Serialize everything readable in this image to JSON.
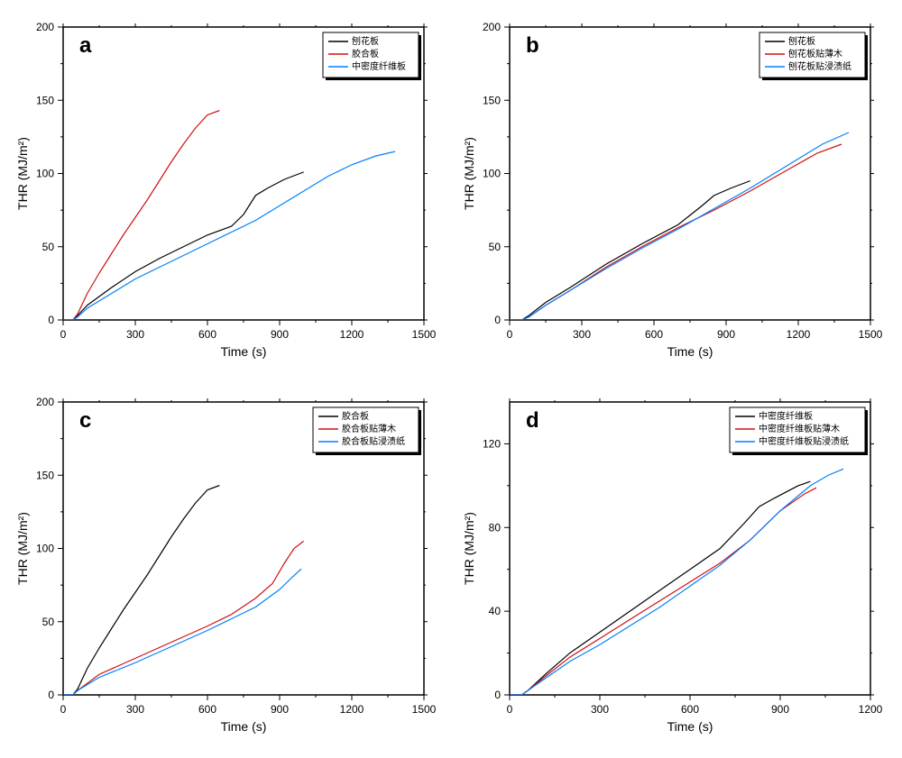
{
  "figure": {
    "background_color": "#ffffff",
    "panels": [
      {
        "id": "a",
        "letter": "a",
        "xlabel": "Time (s)",
        "ylabel": "THR (MJ/m²)",
        "xlim": [
          0,
          1500
        ],
        "ylim": [
          0,
          200
        ],
        "xticks": [
          0,
          300,
          600,
          900,
          1200,
          1500
        ],
        "yticks": [
          0,
          50,
          100,
          150,
          200
        ],
        "legend_items": [
          "刨花板",
          "胶合板",
          "中密度纤维板"
        ],
        "series": [
          {
            "name": "刨花板",
            "color": "#000000",
            "data": [
              [
                0,
                0
              ],
              [
                40,
                0
              ],
              [
                60,
                3
              ],
              [
                100,
                10
              ],
              [
                200,
                22
              ],
              [
                300,
                33
              ],
              [
                400,
                42
              ],
              [
                500,
                50
              ],
              [
                600,
                58
              ],
              [
                700,
                64
              ],
              [
                750,
                72
              ],
              [
                800,
                85
              ],
              [
                850,
                90
              ],
              [
                920,
                96
              ],
              [
                1000,
                101
              ]
            ]
          },
          {
            "name": "胶合板",
            "color": "#d01010",
            "data": [
              [
                0,
                0
              ],
              [
                40,
                0
              ],
              [
                60,
                4
              ],
              [
                100,
                18
              ],
              [
                150,
                32
              ],
              [
                200,
                45
              ],
              [
                250,
                58
              ],
              [
                300,
                70
              ],
              [
                350,
                82
              ],
              [
                400,
                95
              ],
              [
                450,
                108
              ],
              [
                500,
                120
              ],
              [
                550,
                131
              ],
              [
                600,
                140
              ],
              [
                650,
                143
              ]
            ]
          },
          {
            "name": "中密度纤维板",
            "color": "#0080ff",
            "data": [
              [
                0,
                0
              ],
              [
                40,
                0
              ],
              [
                60,
                2
              ],
              [
                100,
                8
              ],
              [
                200,
                18
              ],
              [
                300,
                28
              ],
              [
                400,
                36
              ],
              [
                500,
                44
              ],
              [
                600,
                52
              ],
              [
                700,
                60
              ],
              [
                800,
                68
              ],
              [
                900,
                78
              ],
              [
                1000,
                88
              ],
              [
                1100,
                98
              ],
              [
                1200,
                106
              ],
              [
                1300,
                112
              ],
              [
                1380,
                115
              ]
            ]
          }
        ]
      },
      {
        "id": "b",
        "letter": "b",
        "xlabel": "Time (s)",
        "ylabel": "THR (MJ/m²)",
        "xlim": [
          0,
          1500
        ],
        "ylim": [
          0,
          200
        ],
        "xticks": [
          0,
          300,
          600,
          900,
          1200,
          1500
        ],
        "yticks": [
          0,
          50,
          100,
          150,
          200
        ],
        "legend_items": [
          "刨花板",
          "刨花板贴薄木",
          "刨花板贴浸渍纸"
        ],
        "series": [
          {
            "name": "刨花板",
            "color": "#000000",
            "data": [
              [
                0,
                0
              ],
              [
                50,
                0
              ],
              [
                80,
                3
              ],
              [
                150,
                12
              ],
              [
                250,
                22
              ],
              [
                400,
                38
              ],
              [
                550,
                52
              ],
              [
                700,
                65
              ],
              [
                800,
                78
              ],
              [
                850,
                85
              ],
              [
                920,
                90
              ],
              [
                1000,
                95
              ]
            ]
          },
          {
            "name": "刨花板贴薄木",
            "color": "#d01010",
            "data": [
              [
                0,
                0
              ],
              [
                50,
                0
              ],
              [
                80,
                2
              ],
              [
                150,
                10
              ],
              [
                250,
                20
              ],
              [
                400,
                36
              ],
              [
                550,
                50
              ],
              [
                700,
                63
              ],
              [
                850,
                75
              ],
              [
                1000,
                88
              ],
              [
                1150,
                102
              ],
              [
                1280,
                114
              ],
              [
                1380,
                120
              ]
            ]
          },
          {
            "name": "刨花板贴浸渍纸",
            "color": "#0080ff",
            "data": [
              [
                0,
                0
              ],
              [
                50,
                0
              ],
              [
                80,
                2
              ],
              [
                150,
                10
              ],
              [
                250,
                20
              ],
              [
                400,
                35
              ],
              [
                550,
                49
              ],
              [
                700,
                62
              ],
              [
                850,
                76
              ],
              [
                1000,
                90
              ],
              [
                1150,
                105
              ],
              [
                1300,
                120
              ],
              [
                1410,
                128
              ]
            ]
          }
        ]
      },
      {
        "id": "c",
        "letter": "c",
        "xlabel": "Time (s)",
        "ylabel": "THR (MJ/m²)",
        "xlim": [
          0,
          1500
        ],
        "ylim": [
          0,
          200
        ],
        "xticks": [
          0,
          300,
          600,
          900,
          1200,
          1500
        ],
        "yticks": [
          0,
          50,
          100,
          150,
          200
        ],
        "legend_items": [
          "胶合板",
          "胶合板贴薄木",
          "胶合板贴浸渍纸"
        ],
        "series": [
          {
            "name": "胶合板",
            "color": "#000000",
            "data": [
              [
                0,
                0
              ],
              [
                40,
                0
              ],
              [
                60,
                4
              ],
              [
                100,
                18
              ],
              [
                150,
                32
              ],
              [
                200,
                45
              ],
              [
                250,
                58
              ],
              [
                300,
                70
              ],
              [
                350,
                82
              ],
              [
                400,
                95
              ],
              [
                450,
                108
              ],
              [
                500,
                120
              ],
              [
                550,
                131
              ],
              [
                600,
                140
              ],
              [
                650,
                143
              ]
            ]
          },
          {
            "name": "胶合板贴薄木",
            "color": "#d01010",
            "data": [
              [
                0,
                0
              ],
              [
                40,
                0
              ],
              [
                60,
                3
              ],
              [
                150,
                14
              ],
              [
                300,
                25
              ],
              [
                450,
                36
              ],
              [
                600,
                47
              ],
              [
                700,
                55
              ],
              [
                800,
                66
              ],
              [
                870,
                76
              ],
              [
                920,
                90
              ],
              [
                960,
                100
              ],
              [
                1000,
                105
              ]
            ]
          },
          {
            "name": "胶合板贴浸渍纸",
            "color": "#0080ff",
            "data": [
              [
                0,
                0
              ],
              [
                40,
                0
              ],
              [
                60,
                3
              ],
              [
                150,
                12
              ],
              [
                300,
                22
              ],
              [
                450,
                33
              ],
              [
                600,
                44
              ],
              [
                700,
                52
              ],
              [
                800,
                60
              ],
              [
                900,
                72
              ],
              [
                950,
                80
              ],
              [
                990,
                86
              ]
            ]
          }
        ]
      },
      {
        "id": "d",
        "letter": "d",
        "xlabel": "Time (s)",
        "ylabel": "THR (MJ/m²)",
        "xlim": [
          0,
          1200
        ],
        "ylim": [
          0,
          140
        ],
        "xticks": [
          0,
          300,
          600,
          900,
          1200
        ],
        "yticks": [
          0,
          40,
          80,
          120
        ],
        "legend_items": [
          "中密度纤维板",
          "中密度纤维板贴薄木",
          "中密度纤维板贴浸渍纸"
        ],
        "series": [
          {
            "name": "中密度纤维板",
            "color": "#000000",
            "data": [
              [
                0,
                0
              ],
              [
                40,
                0
              ],
              [
                60,
                2
              ],
              [
                120,
                10
              ],
              [
                200,
                20
              ],
              [
                300,
                30
              ],
              [
                400,
                40
              ],
              [
                500,
                50
              ],
              [
                600,
                60
              ],
              [
                700,
                70
              ],
              [
                780,
                82
              ],
              [
                830,
                90
              ],
              [
                880,
                94
              ],
              [
                960,
                100
              ],
              [
                1000,
                102
              ]
            ]
          },
          {
            "name": "中密度纤维板贴薄木",
            "color": "#d01010",
            "data": [
              [
                0,
                0
              ],
              [
                40,
                0
              ],
              [
                60,
                2
              ],
              [
                120,
                9
              ],
              [
                200,
                18
              ],
              [
                300,
                27
              ],
              [
                400,
                36
              ],
              [
                500,
                45
              ],
              [
                600,
                54
              ],
              [
                700,
                63
              ],
              [
                800,
                74
              ],
              [
                900,
                88
              ],
              [
                980,
                96
              ],
              [
                1020,
                99
              ]
            ]
          },
          {
            "name": "中密度纤维板贴浸渍纸",
            "color": "#0080ff",
            "data": [
              [
                0,
                0
              ],
              [
                40,
                0
              ],
              [
                60,
                2
              ],
              [
                120,
                8
              ],
              [
                200,
                16
              ],
              [
                300,
                24
              ],
              [
                400,
                33
              ],
              [
                500,
                42
              ],
              [
                600,
                52
              ],
              [
                700,
                62
              ],
              [
                800,
                74
              ],
              [
                900,
                88
              ],
              [
                1000,
                100
              ],
              [
                1060,
                105
              ],
              [
                1110,
                108
              ]
            ]
          }
        ]
      }
    ],
    "colors": {
      "axis": "#000000",
      "tick": "#000000",
      "background": "#ffffff",
      "legend_border": "#000000",
      "legend_shadow": "#000000"
    },
    "fonts": {
      "axis_label_size": 14,
      "tick_label_size": 12,
      "panel_letter_size": 24,
      "legend_size": 10
    }
  }
}
